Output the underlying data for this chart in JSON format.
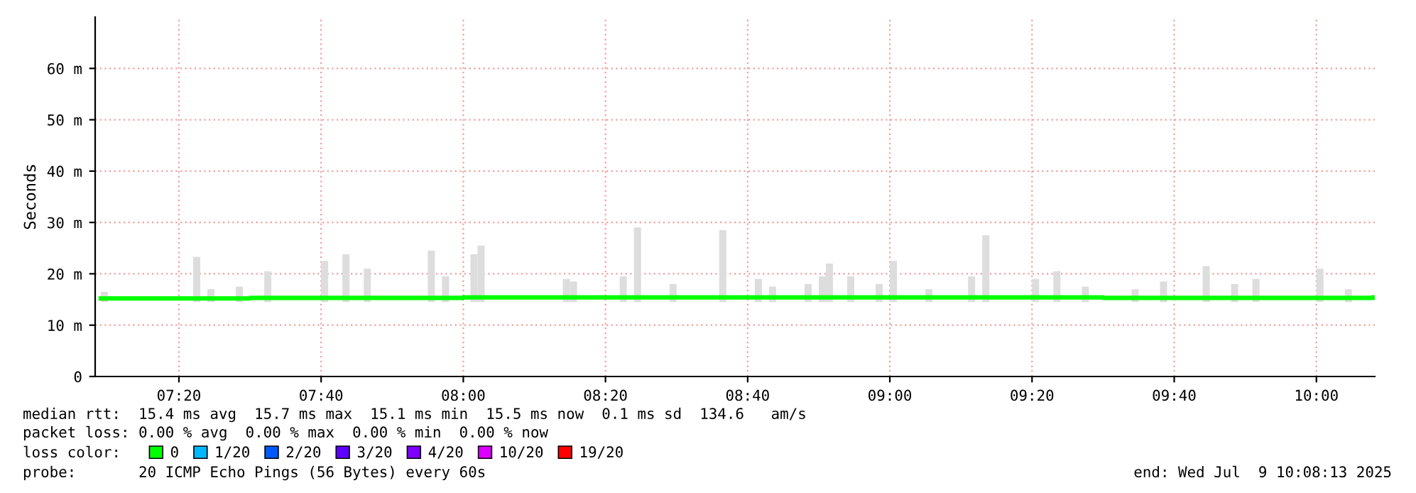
{
  "chart_data": {
    "type": "bar",
    "ylabel": "Seconds",
    "xlim": [
      "2025-07-09T07:08:13",
      "2025-07-09T10:08:13"
    ],
    "xticks": [
      {
        "value": "2025-07-09T07:20",
        "label": "07:20"
      },
      {
        "value": "2025-07-09T07:40",
        "label": "07:40"
      },
      {
        "value": "2025-07-09T08:00",
        "label": "08:00"
      },
      {
        "value": "2025-07-09T08:20",
        "label": "08:20"
      },
      {
        "value": "2025-07-09T08:40",
        "label": "08:40"
      },
      {
        "value": "2025-07-09T09:00",
        "label": "09:00"
      },
      {
        "value": "2025-07-09T09:20",
        "label": "09:20"
      },
      {
        "value": "2025-07-09T09:40",
        "label": "09:40"
      },
      {
        "value": "2025-07-09T10:00",
        "label": "10:00"
      }
    ],
    "ylim": [
      0,
      70
    ],
    "yticks": [
      0,
      {
        "value": 10,
        "label": "10 m"
      },
      {
        "value": 20,
        "label": "20 m"
      },
      {
        "value": 30,
        "label": "30 m"
      },
      {
        "value": 40,
        "label": "40 m"
      },
      {
        "value": 50,
        "label": "50 m"
      },
      {
        "value": 60,
        "label": "60 m"
      }
    ],
    "grid": true,
    "legend": "bottom",
    "legend_title": "loss color:",
    "series": [
      {
        "color": "#dddddd",
        "x": [
          "2025-07-09T07:09",
          "2025-07-09T07:22",
          "2025-07-09T07:24",
          "2025-07-09T07:28",
          "2025-07-09T07:32",
          "2025-07-09T07:40",
          "2025-07-09T07:43",
          "2025-07-09T07:46",
          "2025-07-09T07:55",
          "2025-07-09T07:57",
          "2025-07-09T08:01",
          "2025-07-09T08:02",
          "2025-07-09T08:14",
          "2025-07-09T08:15",
          "2025-07-09T08:22",
          "2025-07-09T08:24",
          "2025-07-09T08:29",
          "2025-07-09T08:36",
          "2025-07-09T08:41",
          "2025-07-09T08:43",
          "2025-07-09T08:48",
          "2025-07-09T08:50",
          "2025-07-09T08:51",
          "2025-07-09T08:54",
          "2025-07-09T08:58",
          "2025-07-09T09:00",
          "2025-07-09T09:05",
          "2025-07-09T09:11",
          "2025-07-09T09:13",
          "2025-07-09T09:20",
          "2025-07-09T09:23",
          "2025-07-09T09:27",
          "2025-07-09T09:34",
          "2025-07-09T09:38",
          "2025-07-09T09:44",
          "2025-07-09T09:48",
          "2025-07-09T09:51",
          "2025-07-09T10:00",
          "2025-07-09T10:04"
        ],
        "base": [
          14.5,
          14.5,
          14.5,
          14.5,
          14.5,
          14.5,
          14.5,
          14.5,
          14.5,
          14.5,
          14.5,
          14.5,
          14.5,
          14.5,
          14.5,
          14.5,
          14.5,
          14.5,
          14.5,
          14.5,
          14.5,
          14.5,
          14.5,
          14.5,
          14.5,
          14.5,
          14.5,
          14.5,
          14.5,
          14.5,
          14.5,
          14.5,
          14.5,
          14.5,
          14.5,
          14.5,
          14.5,
          14.5,
          14.5
        ],
        "values": [
          2,
          8.8,
          2.5,
          3,
          6,
          8,
          9.3,
          6.5,
          10,
          5,
          9.3,
          11,
          4.5,
          4,
          5,
          14.5,
          3.5,
          14,
          4.5,
          3,
          3.5,
          5,
          7.5,
          5,
          3.5,
          8,
          2.5,
          5,
          13,
          4.5,
          6,
          3,
          2.5,
          4,
          7,
          3.5,
          4.5,
          6.5,
          2.5
        ]
      },
      {
        "type": "step",
        "name": "0",
        "color": "#00ff00",
        "x": [
          "2025-07-09T07:09",
          "2025-07-09T07:30",
          "2025-07-09T08:00",
          "2025-07-09T08:30",
          "2025-07-09T09:00",
          "2025-07-09T09:30",
          "2025-07-09T10:08"
        ],
        "values": [
          15.2,
          15.3,
          15.4,
          15.4,
          15.4,
          15.3,
          15.4
        ]
      },
      {
        "type": "step",
        "name": "1/20",
        "color": "#00b8ff"
      },
      {
        "type": "step",
        "name": "2/20",
        "color": "#0059ff"
      },
      {
        "type": "step",
        "name": "3/20",
        "color": "#5e00ff"
      },
      {
        "type": "step",
        "name": "4/20",
        "color": "#7e00ff"
      },
      {
        "type": "step",
        "name": "10/20",
        "color": "#dd00ff"
      },
      {
        "type": "step",
        "name": "19/20",
        "color": "#ff0000"
      }
    ],
    "annotations": [
      "median rtt:  15.4 ms avg  15.7 ms max  15.1 ms min  15.5 ms now  0.1 ms sd  134.6   am/s",
      "packet loss: 0.00 % avg  0.00 % max  0.00 % min  0.00 % now",
      "probe:       20 ICMP Echo Pings (56 Bytes) every 60s",
      "end: Wed Jul  9 10:08:13 2025"
    ]
  }
}
